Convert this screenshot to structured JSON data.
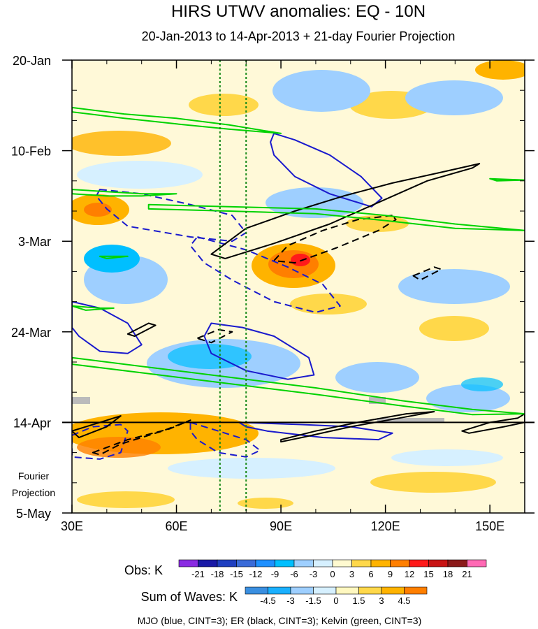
{
  "chart_data": {
    "type": "heatmap",
    "title": "HIRS UTWV anomalies: EQ - 10N",
    "subtitle": "20-Jan-2013 to 14-Apr-2013 + 21-day Fourier Projection",
    "x_axis": {
      "range": [
        30,
        160
      ],
      "ticks": [
        {
          "value": 30,
          "label": "30E"
        },
        {
          "value": 60,
          "label": "60E"
        },
        {
          "value": 90,
          "label": "90E"
        },
        {
          "value": 120,
          "label": "120E"
        },
        {
          "value": 150,
          "label": "150E"
        }
      ]
    },
    "y_axis": {
      "range_days": [
        0,
        105
      ],
      "ticks": [
        {
          "day": 0,
          "label": "20-Jan"
        },
        {
          "day": 21,
          "label": "10-Feb"
        },
        {
          "day": 42,
          "label": "3-Mar"
        },
        {
          "day": 63,
          "label": "24-Mar"
        },
        {
          "day": 84,
          "label": "14-Apr"
        },
        {
          "day": 105,
          "label": "5-May"
        }
      ],
      "projection_start_day": 84,
      "projection_label": [
        "Fourier",
        "Projection"
      ]
    },
    "reference_longitudes": [
      72.5,
      80
    ],
    "obs_colorbar": {
      "title": "Obs: K",
      "labels": [
        "-21",
        "-18",
        "-15",
        "-12",
        "-9",
        "-6",
        "-3",
        "0",
        "3",
        "6",
        "9",
        "12",
        "15",
        "18",
        "21"
      ],
      "colors": [
        "#8a2be2",
        "#1a1aa6",
        "#1f3fc0",
        "#3a6bd8",
        "#1e90ff",
        "#00bfff",
        "#9ecfff",
        "#d6f0ff",
        "#fffad0",
        "#ffd84a",
        "#ffb300",
        "#ff7f00",
        "#ff1a1a",
        "#c81414",
        "#8b1a1a",
        "#ff69b4"
      ]
    },
    "waves_colorbar": {
      "title": "Sum of Waves: K",
      "labels": [
        "-4.5",
        "-3",
        "-1.5",
        "0",
        "1.5",
        "3",
        "4.5"
      ],
      "colors": [
        "#3a8fe0",
        "#1ab0ff",
        "#9ecfff",
        "#d6f0ff",
        "#fff8c0",
        "#ffd84a",
        "#ffb300",
        "#ff7f00"
      ]
    },
    "footnote": "MJO (blue, CINT=3); ER (black, CINT=3); Kelvin (green, CINT=3)",
    "series": [
      {
        "name": "MJO (blue, CINT=3)",
        "color": "#1a1acd",
        "contours": [
          {
            "dashed": false,
            "points": [
              [
                88,
                17
              ],
              [
                94,
                18.5
              ],
              [
                104,
                22
              ],
              [
                113,
                27
              ],
              [
                119,
                32
              ],
              [
                116,
                34
              ],
              [
                104,
                31
              ],
              [
                94,
                27
              ],
              [
                88,
                22
              ],
              [
                87,
                19
              ]
            ]
          },
          {
            "dashed": false,
            "points": [
              [
                30,
                56
              ],
              [
                38,
                57.5
              ],
              [
                46,
                61
              ],
              [
                50,
                66
              ],
              [
                46,
                68
              ],
              [
                38,
                67.5
              ],
              [
                32,
                64
              ],
              [
                30,
                62
              ]
            ]
          },
          {
            "dashed": false,
            "points": [
              [
                70,
                61
              ],
              [
                79,
                62
              ],
              [
                88,
                64
              ],
              [
                98,
                69
              ],
              [
                99.5,
                73
              ],
              [
                92,
                74
              ],
              [
                80,
                72
              ],
              [
                70,
                68
              ],
              [
                68,
                64
              ]
            ]
          },
          {
            "dashed": true,
            "points": [
              [
                38,
                30
              ],
              [
                50,
                31
              ],
              [
                64,
                33.5
              ],
              [
                76,
                36
              ],
              [
                80,
                40
              ],
              [
                76,
                42
              ],
              [
                64,
                41
              ],
              [
                46,
                38.5
              ],
              [
                40,
                34.5
              ],
              [
                37,
                31.5
              ]
            ]
          },
          {
            "dashed": true,
            "points": [
              [
                66,
                41
              ],
              [
                80,
                44
              ],
              [
                92,
                48
              ],
              [
                102,
                52
              ],
              [
                107,
                57
              ],
              [
                100,
                58.5
              ],
              [
                88,
                56
              ],
              [
                76,
                51
              ],
              [
                68,
                47
              ],
              [
                64,
                43
              ]
            ]
          },
          {
            "dashed": true,
            "points": [
              [
                30,
                87
              ],
              [
                36,
                85
              ],
              [
                44,
                84.5
              ],
              [
                46,
                86
              ],
              [
                44,
                91
              ],
              [
                38,
                92.5
              ],
              [
                30,
                92
              ]
            ]
          },
          {
            "dashed": true,
            "points": [
              [
                64,
                84
              ],
              [
                72,
                86
              ],
              [
                80,
                88
              ],
              [
                84,
                90.5
              ],
              [
                80,
                92
              ],
              [
                72,
                91
              ],
              [
                66,
                88
              ],
              [
                64,
                86
              ]
            ]
          },
          {
            "dashed": false,
            "points": [
              [
                78,
                84
              ],
              [
                96,
                84.5
              ],
              [
                110,
                85
              ],
              [
                122,
                86.5
              ],
              [
                118,
                88
              ],
              [
                102,
                87.5
              ],
              [
                86,
                86
              ],
              [
                80,
                85
              ]
            ]
          }
        ]
      },
      {
        "name": "ER (black, CINT=3)",
        "color": "#000000",
        "contours": [
          {
            "dashed": false,
            "points": [
              [
                147,
                24
              ],
              [
                136,
                26
              ],
              [
                122,
                28.5
              ],
              [
                108,
                31.5
              ],
              [
                94,
                35
              ],
              [
                80,
                39
              ],
              [
                70,
                45
              ],
              [
                74,
                46
              ],
              [
                88,
                42.5
              ],
              [
                104,
                38
              ],
              [
                118,
                33
              ],
              [
                132,
                28
              ],
              [
                145,
                25
              ]
            ]
          },
          {
            "dashed": false,
            "points": [
              [
                48,
                64
              ],
              [
                54,
                61.5
              ],
              [
                52,
                61
              ],
              [
                46,
                63.5
              ]
            ]
          },
          {
            "dashed": true,
            "points": [
              [
                122,
                36
              ],
              [
                112,
                37
              ],
              [
                102,
                39.5
              ],
              [
                92,
                43
              ],
              [
                88,
                46.5
              ],
              [
                94,
                47
              ],
              [
                106,
                43.5
              ],
              [
                118,
                39.5
              ],
              [
                123,
                37
              ]
            ]
          },
          {
            "dashed": true,
            "points": [
              [
                66,
                64.5
              ],
              [
                72,
                62.5
              ],
              [
                76,
                63
              ],
              [
                70,
                65.5
              ]
            ]
          },
          {
            "dashed": true,
            "points": [
              [
                128,
                50
              ],
              [
                134,
                48
              ],
              [
                136,
                48.5
              ],
              [
                130,
                51
              ]
            ]
          },
          {
            "dashed": false,
            "points": [
              [
                30,
                86
              ],
              [
                38,
                84
              ],
              [
                44,
                82.5
              ],
              [
                40,
                85
              ],
              [
                32,
                87.5
              ]
            ]
          },
          {
            "dashed": true,
            "points": [
              [
                36,
                91
              ],
              [
                46,
                88
              ],
              [
                58,
                85.5
              ],
              [
                64,
                83.5
              ],
              [
                56,
                86
              ],
              [
                44,
                89
              ],
              [
                38,
                91.5
              ]
            ]
          },
          {
            "dashed": false,
            "points": [
              [
                90,
                88
              ],
              [
                100,
                86
              ],
              [
                112,
                84
              ],
              [
                126,
                82
              ],
              [
                134,
                81.5
              ],
              [
                124,
                83
              ],
              [
                110,
                85
              ],
              [
                96,
                87.5
              ],
              [
                90,
                88.5
              ]
            ]
          },
          {
            "dashed": false,
            "points": [
              [
                142,
                86
              ],
              [
                150,
                84
              ],
              [
                158,
                83
              ],
              [
                160,
                82
              ],
              [
                160,
                84
              ],
              [
                154,
                85
              ],
              [
                144,
                86.5
              ]
            ]
          }
        ]
      },
      {
        "name": "Kelvin (green, CINT=3)",
        "color": "#00d200",
        "contours": [
          {
            "dashed": false,
            "points": [
              [
                30,
                11
              ],
              [
                45,
                12.5
              ],
              [
                60,
                13.5
              ],
              [
                75,
                15
              ],
              [
                90,
                17
              ],
              [
                75,
                16
              ],
              [
                60,
                14.8
              ],
              [
                45,
                13.5
              ],
              [
                30,
                12
              ]
            ]
          },
          {
            "dashed": false,
            "points": [
              [
                30,
                30
              ],
              [
                40,
                30.5
              ],
              [
                50,
                31
              ],
              [
                60,
                31
              ],
              [
                50,
                31.5
              ],
              [
                40,
                31.5
              ],
              [
                30,
                31
              ]
            ]
          },
          {
            "dashed": false,
            "points": [
              [
                52,
                33.5
              ],
              [
                75,
                34
              ],
              [
                100,
                34.5
              ],
              [
                120,
                36
              ],
              [
                140,
                38
              ],
              [
                160,
                39.5
              ],
              [
                140,
                39
              ],
              [
                120,
                37.2
              ],
              [
                100,
                35.6
              ],
              [
                75,
                35
              ],
              [
                52,
                34.5
              ]
            ]
          },
          {
            "dashed": false,
            "points": [
              [
                30,
                69
              ],
              [
                50,
                71
              ],
              [
                75,
                73.5
              ],
              [
                100,
                76
              ],
              [
                125,
                79
              ],
              [
                145,
                81
              ],
              [
                160,
                82
              ],
              [
                145,
                82.2
              ],
              [
                125,
                80.2
              ],
              [
                100,
                77.5
              ],
              [
                75,
                75
              ],
              [
                50,
                72.5
              ],
              [
                30,
                70.5
              ]
            ]
          },
          {
            "dashed": false,
            "points": [
              [
                30,
                57
              ],
              [
                38,
                57.5
              ],
              [
                42,
                57.5
              ],
              [
                34,
                58
              ]
            ]
          },
          {
            "dashed": false,
            "points": [
              [
                38,
                45.5
              ],
              [
                46,
                45.5
              ],
              [
                40,
                46
              ]
            ]
          },
          {
            "dashed": false,
            "points": [
              [
                150,
                27.5
              ],
              [
                160,
                27.8
              ],
              [
                152,
                28
              ]
            ]
          }
        ]
      }
    ]
  }
}
